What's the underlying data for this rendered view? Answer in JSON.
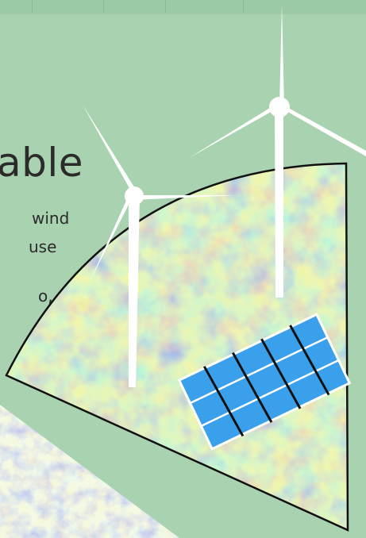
{
  "poster": {
    "title_fragment": "able",
    "text_lines": [
      "wind",
      "use",
      "o,",
      ""
    ]
  },
  "colors": {
    "background": "#a9d2b1",
    "map_blue": "#7fb6d8",
    "map_yellow": "#e6dd7a",
    "panel_blue": "#3aa0ec",
    "turbine": "#ffffff",
    "outline": "#111111"
  },
  "illustration": {
    "icons": [
      "wind-turbine-icon",
      "wind-turbine-icon",
      "solar-panel-icon",
      "map-texture"
    ]
  }
}
